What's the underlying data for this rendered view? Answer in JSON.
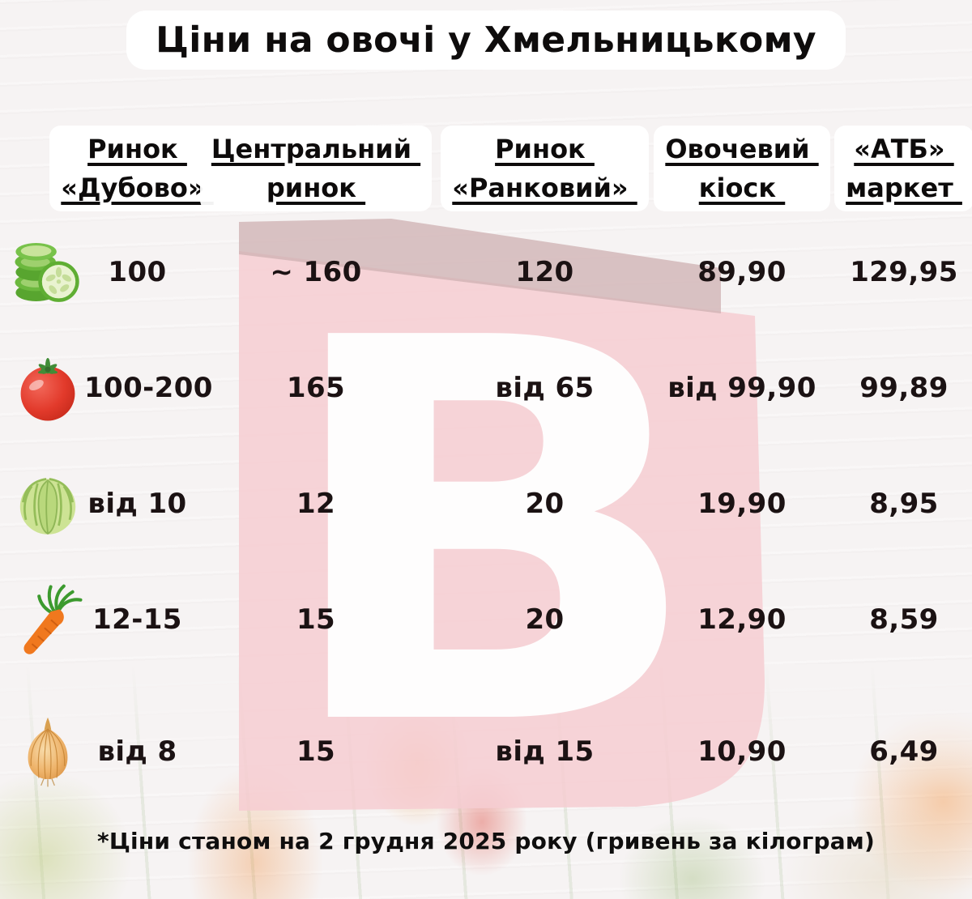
{
  "title": "Ціни на овочі у Хмельницькому",
  "footnote": "*Ціни станом на 2 грудня 2025 року (гривень за кілограм)",
  "watermark": {
    "letter": "B",
    "body_color": "#f6cdd1",
    "fold_color": "#cfb2b3",
    "letter_color": "#fefdfd"
  },
  "table": {
    "columns": [
      {
        "id": "dubovo",
        "label": "Ринок «Дубово»",
        "lines": [
          "Ринок",
          "«Дубово»"
        ]
      },
      {
        "id": "central",
        "label": "Центральний ринок",
        "lines": [
          "Центральний",
          "ринок"
        ]
      },
      {
        "id": "rankovyi",
        "label": "Ринок «Ранковий»",
        "lines": [
          "Ринок",
          "«Ранковий»"
        ]
      },
      {
        "id": "kiosk",
        "label": "Овочевий кіоск",
        "lines": [
          "Овочевий",
          "кіоск"
        ]
      },
      {
        "id": "atb",
        "label": "«АТБ» маркет",
        "lines": [
          "«АТБ»",
          "маркет"
        ]
      }
    ],
    "rows": [
      {
        "vegetable": "cucumber",
        "icon": "cucumber-icon",
        "prices": [
          "100",
          "~ 160",
          "120",
          "89,90",
          "129,95"
        ]
      },
      {
        "vegetable": "tomato",
        "icon": "tomato-icon",
        "prices": [
          "100-200",
          "165",
          "від 65",
          "від 99,90",
          "99,89"
        ]
      },
      {
        "vegetable": "cabbage",
        "icon": "cabbage-icon",
        "prices": [
          "від 10",
          "12",
          "20",
          "19,90",
          "8,95"
        ]
      },
      {
        "vegetable": "carrot",
        "icon": "carrot-icon",
        "prices": [
          "12-15",
          "15",
          "20",
          "12,90",
          "8,59"
        ]
      },
      {
        "vegetable": "onion",
        "icon": "onion-icon",
        "prices": [
          "від 8",
          "15",
          "від 15",
          "10,90",
          "6,49"
        ]
      }
    ]
  }
}
